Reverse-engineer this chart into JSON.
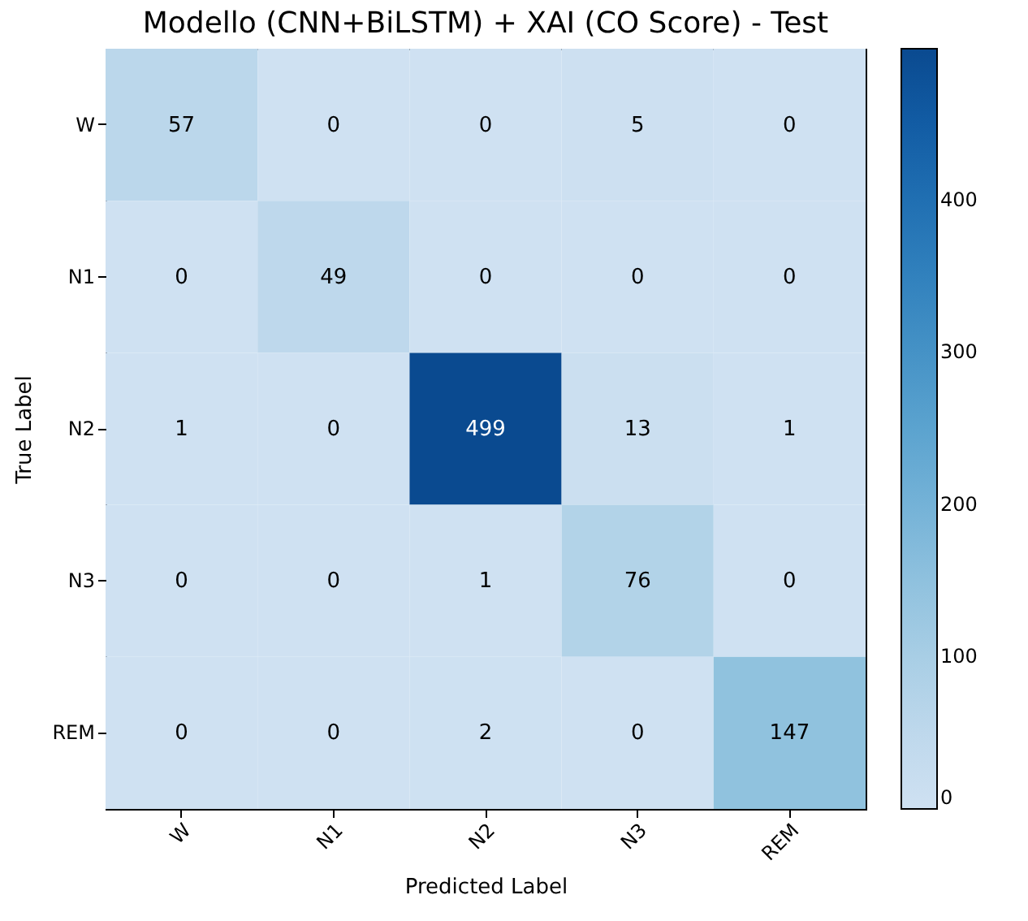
{
  "chart_data": {
    "type": "heatmap",
    "title": "Modello (CNN+BiLSTM) + XAI (CO Score) - Test",
    "xlabel": "Predicted Label",
    "ylabel": "True Label",
    "categories": [
      "W",
      "N1",
      "N2",
      "N3",
      "REM"
    ],
    "y_categories": [
      "W",
      "N1",
      "N2",
      "N3",
      "REM"
    ],
    "cells": [
      [
        57,
        0,
        0,
        5,
        0
      ],
      [
        0,
        49,
        0,
        0,
        0
      ],
      [
        1,
        0,
        499,
        13,
        1
      ],
      [
        0,
        0,
        1,
        76,
        0
      ],
      [
        0,
        0,
        2,
        0,
        147
      ]
    ],
    "clim": [
      0,
      499
    ],
    "cticks": [
      0,
      100,
      200,
      300,
      400
    ],
    "data_labels": true
  }
}
